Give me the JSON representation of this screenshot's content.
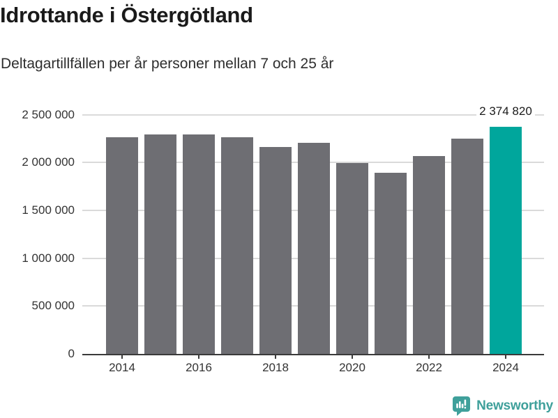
{
  "chart_data": {
    "type": "bar",
    "title": "Idrottande i Östergötland",
    "subtitle": "Deltagartillfällen per år personer mellan 7 och 25 år",
    "categories": [
      2014,
      2015,
      2016,
      2017,
      2018,
      2019,
      2020,
      2021,
      2022,
      2023,
      2024
    ],
    "values": [
      2265000,
      2290000,
      2290000,
      2265000,
      2158000,
      2205000,
      1993000,
      1895000,
      2070000,
      2252000,
      2374820
    ],
    "highlight_index": 10,
    "annotation": {
      "label": "2 374 820",
      "category": 2024,
      "value": 2374820
    },
    "ylim": [
      0,
      2500000
    ],
    "yticks": [
      {
        "value": 0,
        "label": "0"
      },
      {
        "value": 500000,
        "label": "500 000"
      },
      {
        "value": 1000000,
        "label": "1 000 000"
      },
      {
        "value": 1500000,
        "label": "1 500 000"
      },
      {
        "value": 2000000,
        "label": "2 000 000"
      },
      {
        "value": 2500000,
        "label": "2 500 000"
      }
    ],
    "xticks": [
      {
        "value": 2014,
        "label": "2014"
      },
      {
        "value": 2016,
        "label": "2016"
      },
      {
        "value": 2018,
        "label": "2018"
      },
      {
        "value": 2020,
        "label": "2020"
      },
      {
        "value": 2022,
        "label": "2022"
      },
      {
        "value": 2024,
        "label": "2024"
      }
    ],
    "grid": true,
    "legend": false,
    "xlabel": "",
    "ylabel": "",
    "colors": {
      "bar": "#6e6e73",
      "highlight": "#00a69c",
      "grid": "#dadada",
      "axis": "#3a3a3a",
      "tick_label": "#333333",
      "annotation": "#1a1a1a"
    }
  },
  "footer": {
    "brand": "Newsworthy",
    "brand_color": "#3fa09b",
    "logo_icon": "bar-chart-speech-bubble-icon"
  }
}
